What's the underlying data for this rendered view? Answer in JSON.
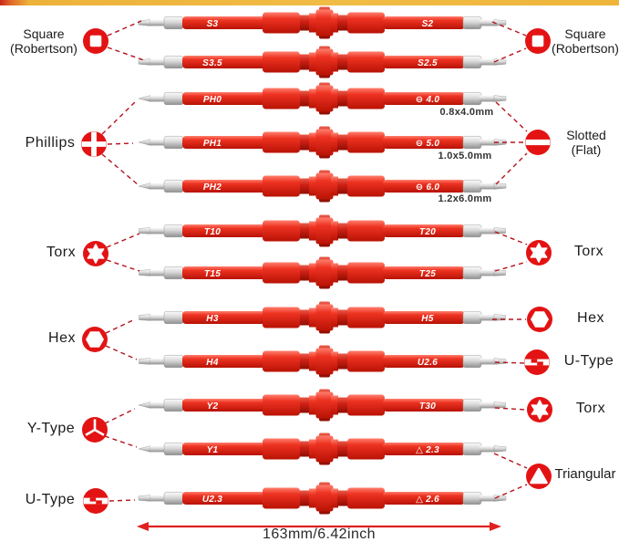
{
  "colors": {
    "handle_red": "#ee3322",
    "icon_red": "#e31313",
    "dashed_line_red": "#b5121b",
    "arrow_red": "#e02020",
    "accent_bar_yellow": "#efb83d",
    "accent_bar_red": "#c9271c"
  },
  "screwdrivers": [
    {
      "left_label": "S3",
      "right_label": "S2",
      "left_tip": "flat",
      "right_tip": "flat"
    },
    {
      "left_label": "S3.5",
      "right_label": "S2.5",
      "left_tip": "flat",
      "right_tip": "flat"
    },
    {
      "left_label": "PH0",
      "right_label": "⊖ 4.0",
      "right_spec": "0.8x4.0mm",
      "left_tip": "cone",
      "right_tip": "flat"
    },
    {
      "left_label": "PH1",
      "right_label": "⊖ 5.0",
      "right_spec": "1.0x5.0mm",
      "left_tip": "cone",
      "right_tip": "flat"
    },
    {
      "left_label": "PH2",
      "right_label": "⊖ 6.0",
      "right_spec": "1.2x6.0mm",
      "left_tip": "cone",
      "right_tip": "flat"
    },
    {
      "left_label": "T10",
      "right_label": "T20",
      "left_tip": "pin",
      "right_tip": "pin"
    },
    {
      "left_label": "T15",
      "right_label": "T25",
      "left_tip": "pin",
      "right_tip": "pin"
    },
    {
      "left_label": "H3",
      "right_label": "H5",
      "left_tip": "pin",
      "right_tip": "pin"
    },
    {
      "left_label": "H4",
      "right_label": "U2.6",
      "left_tip": "pin",
      "right_tip": "flat"
    },
    {
      "left_label": "Y2",
      "right_label": "T30",
      "left_tip": "cone",
      "right_tip": "pin"
    },
    {
      "left_label": "Y1",
      "right_label": "△ 2.3",
      "left_tip": "cone",
      "right_tip": "flat"
    },
    {
      "left_label": "U2.3",
      "right_label": "△ 2.6",
      "left_tip": "flat",
      "right_tip": "flat"
    }
  ],
  "callouts_left": [
    {
      "id": "square-robertson",
      "icon": "square",
      "label_lines": [
        "Square",
        "(Robertson)"
      ]
    },
    {
      "id": "phillips",
      "icon": "phillips",
      "label_lines": [
        "Phillips"
      ]
    },
    {
      "id": "torx",
      "icon": "torx",
      "label_lines": [
        "Torx"
      ]
    },
    {
      "id": "hex",
      "icon": "hex",
      "label_lines": [
        "Hex"
      ]
    },
    {
      "id": "y-type",
      "icon": "y",
      "label_lines": [
        "Y-Type"
      ]
    },
    {
      "id": "u-type",
      "icon": "u",
      "label_lines": [
        "U-Type"
      ]
    }
  ],
  "callouts_right": [
    {
      "id": "square-robertson",
      "icon": "square",
      "label_lines": [
        "Square",
        "(Robertson)"
      ]
    },
    {
      "id": "slotted-flat",
      "icon": "slotted",
      "label_lines": [
        "Slotted",
        "(Flat)"
      ]
    },
    {
      "id": "torx",
      "icon": "torx",
      "label_lines": [
        "Torx"
      ]
    },
    {
      "id": "hex",
      "icon": "hex",
      "label_lines": [
        "Hex"
      ]
    },
    {
      "id": "u-type",
      "icon": "u",
      "label_lines": [
        "U-Type"
      ]
    },
    {
      "id": "torx-2",
      "icon": "torx",
      "label_lines": [
        "Torx"
      ]
    },
    {
      "id": "triangular",
      "icon": "triangle",
      "label_lines": [
        "Triangular"
      ]
    }
  ],
  "dimension": {
    "label": "163mm/6.42inch"
  }
}
